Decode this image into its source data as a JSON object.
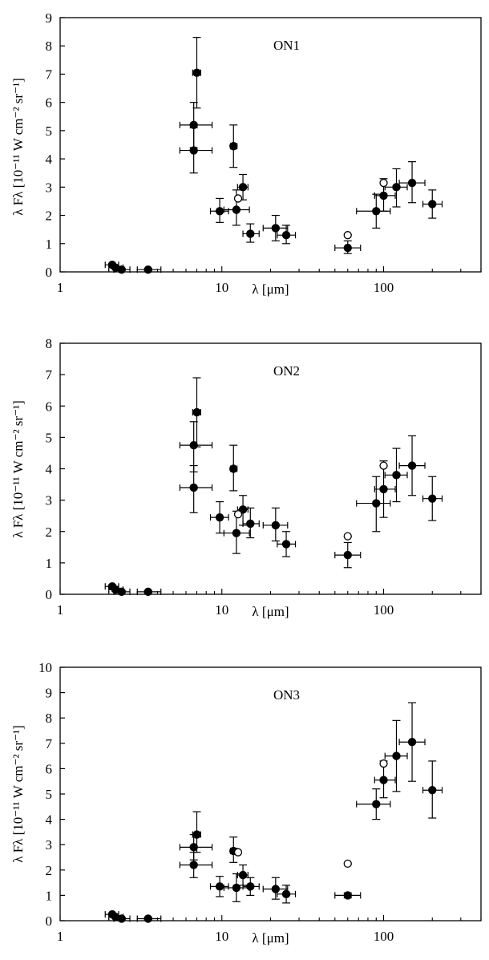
{
  "chart_data": [
    {
      "type": "scatter",
      "title": "ON1",
      "xlabel": "λ [μm]",
      "ylabel": "λ Fλ [10⁻¹¹ W cm⁻² sr⁻¹]",
      "x_scale": "log",
      "xlim": [
        1,
        400
      ],
      "ylim": [
        0,
        9
      ],
      "x_ticks": [
        1,
        10,
        100
      ],
      "x_tick_labels": [
        "1",
        "10",
        "100"
      ],
      "y_ticks": [
        0,
        1,
        2,
        3,
        4,
        5,
        6,
        7,
        8,
        9
      ],
      "series": [
        {
          "marker": "filled",
          "points": [
            {
              "x": 2.1,
              "y": 0.25,
              "xlo": 1.9,
              "xhi": 2.3,
              "ylo": 0.2,
              "yhi": 0.3
            },
            {
              "x": 2.2,
              "y": 0.15,
              "xlo": 2.0,
              "xhi": 2.45,
              "ylo": 0.1,
              "yhi": 0.2
            },
            {
              "x": 2.4,
              "y": 0.08,
              "xlo": 2.15,
              "xhi": 2.7,
              "ylo": 0.05,
              "yhi": 0.12
            },
            {
              "x": 3.5,
              "y": 0.08,
              "xlo": 3.0,
              "xhi": 4.2,
              "ylo": 0.05,
              "yhi": 0.12
            },
            {
              "x": 6.7,
              "y": 4.3,
              "xlo": 5.5,
              "xhi": 8.7,
              "ylo": 3.5,
              "yhi": 5.1
            },
            {
              "x": 6.7,
              "y": 5.2,
              "xlo": 5.5,
              "xhi": 8.7,
              "ylo": 4.4,
              "yhi": 6.0
            },
            {
              "x": 7.0,
              "y": 7.05,
              "xlo": 6.6,
              "xhi": 7.4,
              "ylo": 5.8,
              "yhi": 8.3
            },
            {
              "x": 9.7,
              "y": 2.15,
              "xlo": 8.5,
              "xhi": 11.0,
              "ylo": 1.75,
              "yhi": 2.6
            },
            {
              "x": 11.8,
              "y": 4.45,
              "xlo": 11.3,
              "xhi": 12.4,
              "ylo": 3.7,
              "yhi": 5.2
            },
            {
              "x": 12.3,
              "y": 2.2,
              "xlo": 10.3,
              "xhi": 14.8,
              "ylo": 1.65,
              "yhi": 2.9
            },
            {
              "x": 13.5,
              "y": 3.0,
              "xlo": 12.5,
              "xhi": 14.5,
              "ylo": 2.55,
              "yhi": 3.45
            },
            {
              "x": 15.0,
              "y": 1.35,
              "xlo": 13.5,
              "xhi": 17.0,
              "ylo": 1.05,
              "yhi": 1.7
            },
            {
              "x": 21.5,
              "y": 1.55,
              "xlo": 18.0,
              "xhi": 25.5,
              "ylo": 1.1,
              "yhi": 2.0
            },
            {
              "x": 25.0,
              "y": 1.3,
              "xlo": 22.0,
              "xhi": 28.5,
              "ylo": 1.0,
              "yhi": 1.65
            },
            {
              "x": 60,
              "y": 0.85,
              "xlo": 50,
              "xhi": 72,
              "ylo": 0.65,
              "yhi": 1.1
            },
            {
              "x": 90,
              "y": 2.15,
              "xlo": 68,
              "xhi": 110,
              "ylo": 1.55,
              "yhi": 2.75
            },
            {
              "x": 100,
              "y": 2.7,
              "xlo": 88,
              "xhi": 118,
              "ylo": 2.15,
              "yhi": 3.3
            },
            {
              "x": 120,
              "y": 3.0,
              "xlo": 102,
              "xhi": 140,
              "ylo": 2.3,
              "yhi": 3.65
            },
            {
              "x": 150,
              "y": 3.15,
              "xlo": 125,
              "xhi": 180,
              "ylo": 2.45,
              "yhi": 3.9
            },
            {
              "x": 200,
              "y": 2.4,
              "xlo": 175,
              "xhi": 230,
              "ylo": 1.9,
              "yhi": 2.9
            }
          ]
        },
        {
          "marker": "open",
          "points": [
            {
              "x": 12.6,
              "y": 2.6
            },
            {
              "x": 60,
              "y": 1.3
            },
            {
              "x": 100,
              "y": 3.15
            }
          ]
        }
      ]
    },
    {
      "type": "scatter",
      "title": "ON2",
      "xlabel": "λ [μm]",
      "ylabel": "λ Fλ [10⁻¹¹ W cm⁻² sr⁻¹]",
      "x_scale": "log",
      "xlim": [
        1,
        400
      ],
      "ylim": [
        0,
        8
      ],
      "x_ticks": [
        1,
        10,
        100
      ],
      "x_tick_labels": [
        "1",
        "10",
        "100"
      ],
      "y_ticks": [
        0,
        1,
        2,
        3,
        4,
        5,
        6,
        7,
        8
      ],
      "series": [
        {
          "marker": "filled",
          "points": [
            {
              "x": 2.1,
              "y": 0.25,
              "xlo": 1.9,
              "xhi": 2.3,
              "ylo": 0.2,
              "yhi": 0.3
            },
            {
              "x": 2.2,
              "y": 0.15,
              "xlo": 2.0,
              "xhi": 2.45,
              "ylo": 0.1,
              "yhi": 0.2
            },
            {
              "x": 2.4,
              "y": 0.08,
              "xlo": 2.15,
              "xhi": 2.7,
              "ylo": 0.05,
              "yhi": 0.12
            },
            {
              "x": 3.5,
              "y": 0.08,
              "xlo": 3.0,
              "xhi": 4.2,
              "ylo": 0.05,
              "yhi": 0.12
            },
            {
              "x": 6.7,
              "y": 3.4,
              "xlo": 5.5,
              "xhi": 8.7,
              "ylo": 2.6,
              "yhi": 4.1
            },
            {
              "x": 6.7,
              "y": 4.75,
              "xlo": 5.5,
              "xhi": 8.7,
              "ylo": 3.9,
              "yhi": 5.5
            },
            {
              "x": 7.0,
              "y": 5.8,
              "xlo": 6.6,
              "xhi": 7.4,
              "ylo": 4.7,
              "yhi": 6.9
            },
            {
              "x": 9.7,
              "y": 2.45,
              "xlo": 8.5,
              "xhi": 11.0,
              "ylo": 1.95,
              "yhi": 2.95
            },
            {
              "x": 11.8,
              "y": 4.0,
              "xlo": 11.3,
              "xhi": 12.4,
              "ylo": 3.3,
              "yhi": 4.75
            },
            {
              "x": 12.3,
              "y": 1.95,
              "xlo": 10.3,
              "xhi": 14.8,
              "ylo": 1.3,
              "yhi": 2.65
            },
            {
              "x": 13.5,
              "y": 2.7,
              "xlo": 12.5,
              "xhi": 14.5,
              "ylo": 2.2,
              "yhi": 3.15
            },
            {
              "x": 15.0,
              "y": 2.25,
              "xlo": 13.5,
              "xhi": 17.0,
              "ylo": 1.8,
              "yhi": 2.75
            },
            {
              "x": 21.5,
              "y": 2.2,
              "xlo": 18.0,
              "xhi": 25.5,
              "ylo": 1.7,
              "yhi": 2.75
            },
            {
              "x": 25.0,
              "y": 1.6,
              "xlo": 22.0,
              "xhi": 28.5,
              "ylo": 1.2,
              "yhi": 2.0
            },
            {
              "x": 60,
              "y": 1.25,
              "xlo": 50,
              "xhi": 72,
              "ylo": 0.85,
              "yhi": 1.65
            },
            {
              "x": 90,
              "y": 2.9,
              "xlo": 68,
              "xhi": 110,
              "ylo": 2.0,
              "yhi": 3.75
            },
            {
              "x": 100,
              "y": 3.35,
              "xlo": 88,
              "xhi": 118,
              "ylo": 2.45,
              "yhi": 4.25
            },
            {
              "x": 120,
              "y": 3.8,
              "xlo": 102,
              "xhi": 140,
              "ylo": 2.95,
              "yhi": 4.65
            },
            {
              "x": 150,
              "y": 4.1,
              "xlo": 125,
              "xhi": 180,
              "ylo": 3.15,
              "yhi": 5.05
            },
            {
              "x": 200,
              "y": 3.05,
              "xlo": 175,
              "xhi": 230,
              "ylo": 2.35,
              "yhi": 3.75
            }
          ]
        },
        {
          "marker": "open",
          "points": [
            {
              "x": 12.6,
              "y": 2.55
            },
            {
              "x": 60,
              "y": 1.85
            },
            {
              "x": 100,
              "y": 4.1
            }
          ]
        }
      ]
    },
    {
      "type": "scatter",
      "title": "ON3",
      "xlabel": "λ [μm]",
      "ylabel": "λ Fλ [10⁻¹¹ W cm⁻² sr⁻¹]",
      "x_scale": "log",
      "xlim": [
        1,
        400
      ],
      "ylim": [
        0,
        10
      ],
      "x_ticks": [
        1,
        10,
        100
      ],
      "x_tick_labels": [
        "1",
        "10",
        "100"
      ],
      "y_ticks": [
        0,
        1,
        2,
        3,
        4,
        5,
        6,
        7,
        8,
        9,
        10
      ],
      "series": [
        {
          "marker": "filled",
          "points": [
            {
              "x": 2.1,
              "y": 0.25,
              "xlo": 1.9,
              "xhi": 2.3,
              "ylo": 0.2,
              "yhi": 0.3
            },
            {
              "x": 2.2,
              "y": 0.15,
              "xlo": 2.0,
              "xhi": 2.45,
              "ylo": 0.1,
              "yhi": 0.2
            },
            {
              "x": 2.4,
              "y": 0.08,
              "xlo": 2.15,
              "xhi": 2.7,
              "ylo": 0.05,
              "yhi": 0.12
            },
            {
              "x": 3.5,
              "y": 0.08,
              "xlo": 3.0,
              "xhi": 4.2,
              "ylo": 0.05,
              "yhi": 0.12
            },
            {
              "x": 6.7,
              "y": 2.2,
              "xlo": 5.5,
              "xhi": 8.7,
              "ylo": 1.7,
              "yhi": 2.7
            },
            {
              "x": 6.7,
              "y": 2.9,
              "xlo": 5.5,
              "xhi": 8.7,
              "ylo": 2.4,
              "yhi": 3.4
            },
            {
              "x": 7.0,
              "y": 3.4,
              "xlo": 6.6,
              "xhi": 7.4,
              "ylo": 2.7,
              "yhi": 4.3
            },
            {
              "x": 9.7,
              "y": 1.35,
              "xlo": 8.5,
              "xhi": 11.0,
              "ylo": 0.95,
              "yhi": 1.75
            },
            {
              "x": 11.8,
              "y": 2.75,
              "xlo": 11.3,
              "xhi": 12.4,
              "ylo": 2.3,
              "yhi": 3.3
            },
            {
              "x": 12.3,
              "y": 1.3,
              "xlo": 10.3,
              "xhi": 14.8,
              "ylo": 0.75,
              "yhi": 1.85
            },
            {
              "x": 13.5,
              "y": 1.8,
              "xlo": 12.5,
              "xhi": 14.5,
              "ylo": 1.4,
              "yhi": 2.2
            },
            {
              "x": 15.0,
              "y": 1.35,
              "xlo": 13.5,
              "xhi": 17.0,
              "ylo": 1.0,
              "yhi": 1.7
            },
            {
              "x": 21.5,
              "y": 1.25,
              "xlo": 18.0,
              "xhi": 25.5,
              "ylo": 0.85,
              "yhi": 1.7
            },
            {
              "x": 25.0,
              "y": 1.05,
              "xlo": 22.0,
              "xhi": 28.5,
              "ylo": 0.7,
              "yhi": 1.4
            },
            {
              "x": 60,
              "y": 1.0,
              "xlo": 50,
              "xhi": 72,
              "ylo": 0.9,
              "yhi": 1.1
            },
            {
              "x": 90,
              "y": 4.6,
              "xlo": 68,
              "xhi": 110,
              "ylo": 4.0,
              "yhi": 5.2
            },
            {
              "x": 100,
              "y": 5.55,
              "xlo": 88,
              "xhi": 118,
              "ylo": 4.85,
              "yhi": 6.3
            },
            {
              "x": 120,
              "y": 6.5,
              "xlo": 102,
              "xhi": 140,
              "ylo": 5.1,
              "yhi": 7.9
            },
            {
              "x": 150,
              "y": 7.05,
              "xlo": 125,
              "xhi": 180,
              "ylo": 5.5,
              "yhi": 8.6
            },
            {
              "x": 200,
              "y": 5.15,
              "xlo": 175,
              "xhi": 230,
              "ylo": 4.05,
              "yhi": 6.3
            }
          ]
        },
        {
          "marker": "open",
          "points": [
            {
              "x": 12.6,
              "y": 2.7
            },
            {
              "x": 60,
              "y": 2.25
            },
            {
              "x": 100,
              "y": 6.2
            }
          ]
        }
      ]
    }
  ]
}
